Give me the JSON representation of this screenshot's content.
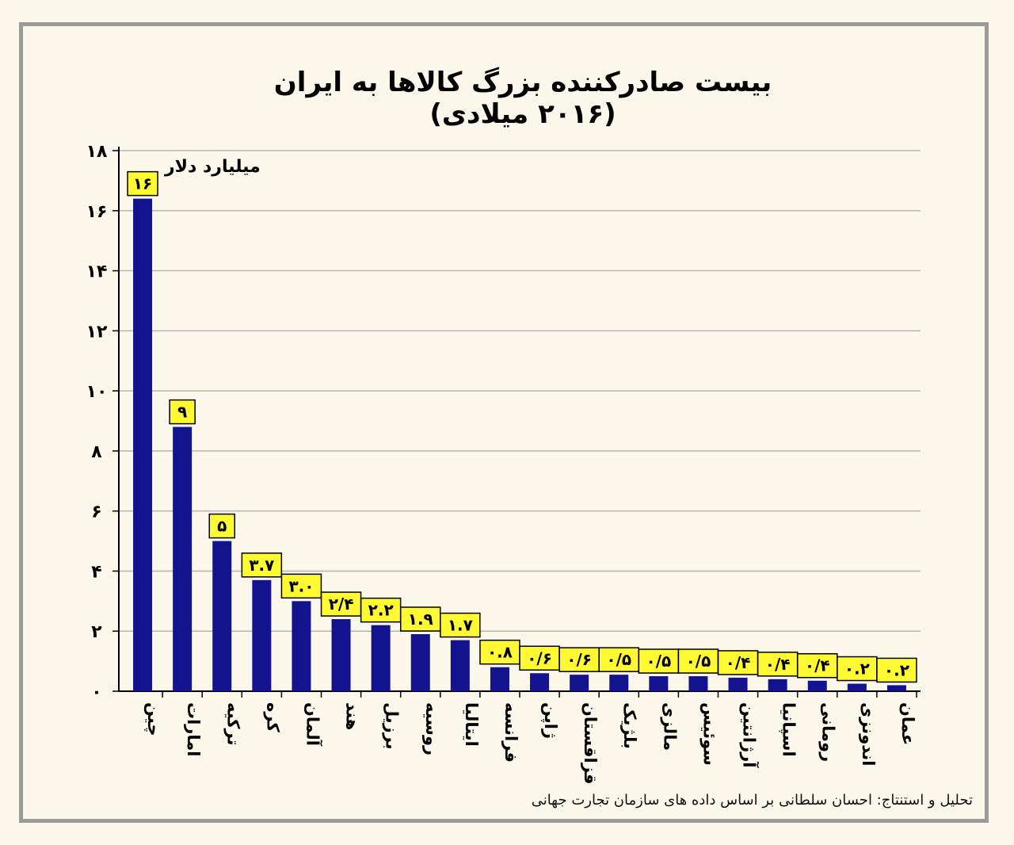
{
  "chart_data": {
    "type": "bar",
    "title": "بیست صادرکننده بزرگ کالاها به ایران (۲۰۱۶ میلادی)",
    "ylabel": "میلیارد دلار",
    "xlabel": "",
    "ylim": [
      0,
      18
    ],
    "yticks": [
      "۰",
      "۲",
      "۴",
      "۶",
      "۸",
      "۱۰",
      "۱۲",
      "۱۴",
      "۱۶",
      "۱۸"
    ],
    "grid": true,
    "categories": [
      "چین",
      "امارات",
      "ترکیه",
      "کره",
      "آلمان",
      "هند",
      "برزیل",
      "روسیه",
      "ایتالیا",
      "فرانسه",
      "ژاپن",
      "قزاقستان",
      "بلژیک",
      "مالزی",
      "سوئیس",
      "آرژانتین",
      "اسپانیا",
      "رومانی",
      "اندونزی",
      "عمان"
    ],
    "values": [
      16.4,
      8.8,
      5.0,
      3.7,
      3.0,
      2.4,
      2.2,
      1.9,
      1.7,
      0.8,
      0.6,
      0.55,
      0.55,
      0.5,
      0.5,
      0.45,
      0.4,
      0.35,
      0.25,
      0.2
    ],
    "value_labels": [
      "۱۶",
      "۹",
      "۵",
      "۳.۷",
      "۳.۰",
      "۲/۴",
      "۲.۲",
      "۱.۹",
      "۱.۷",
      "۰.۸",
      "۰/۶",
      "۰/۶",
      "۰/۵",
      "۰/۵",
      "۰/۵",
      "۰/۴",
      "۰/۴",
      "۰/۴",
      "۰.۲",
      "۰.۲"
    ],
    "colors": {
      "bar": "#13138f",
      "label_box": "#fff933",
      "grid": "#b5b5b5",
      "background": "#fbf7ea"
    }
  },
  "credit": "تحلیل و استنتاج: احسان سلطانی بر اساس داده های سازمان تجارت جهانی"
}
